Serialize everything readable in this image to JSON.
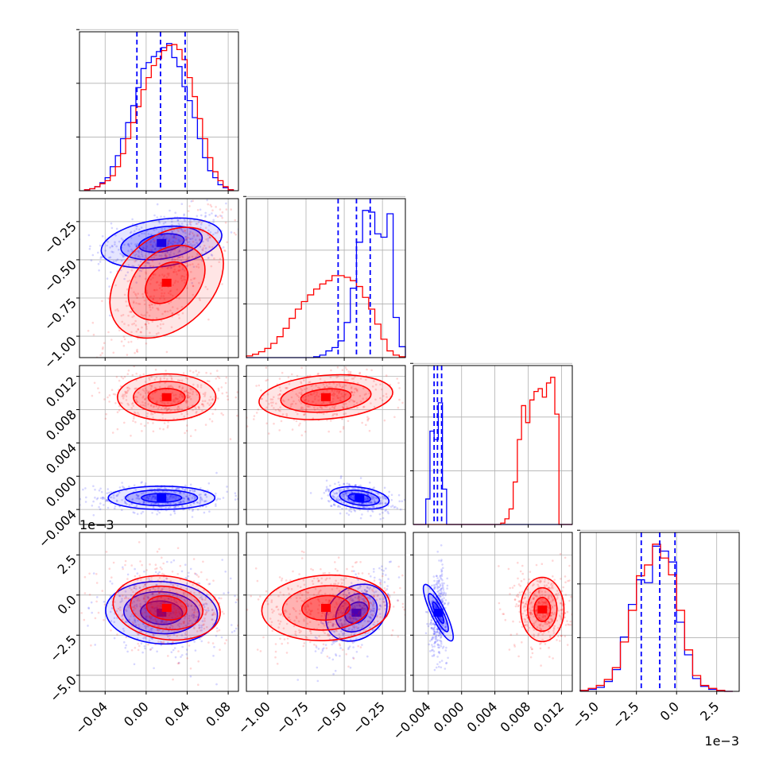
{
  "chart_data": {
    "type": "corner",
    "series": [
      {
        "color": "#0000ff"
      },
      {
        "color": "#ff0000"
      }
    ],
    "parameters": [
      {
        "range": [
          -0.065,
          0.09
        ],
        "ticks": [
          -0.04,
          0.0,
          0.04,
          0.08
        ],
        "tick_labels": [
          "−0.04",
          "0.00",
          "0.04",
          "0.08"
        ]
      },
      {
        "range": [
          -1.14,
          -0.1
        ],
        "ticks": [
          -1.0,
          -0.75,
          -0.5,
          -0.25
        ],
        "tick_labels": [
          "−1.00",
          "−0.75",
          "−0.50",
          "−0.25"
        ]
      },
      {
        "range": [
          -0.0058,
          0.0133
        ],
        "ticks": [
          -0.004,
          0.0,
          0.004,
          0.008,
          0.012
        ],
        "tick_labels": [
          "−0.004",
          "0.000",
          "0.004",
          "0.008",
          "0.012"
        ]
      },
      {
        "range": [
          -6.0,
          3.9
        ],
        "ticks": [
          -5.0,
          -2.5,
          0.0,
          2.5
        ],
        "tick_labels": [
          "−5.0",
          "−2.5",
          "0.0",
          "2.5"
        ]
      }
    ],
    "offset_labels": {
      "row4_y": "1e−3",
      "col4_x": "1e−3"
    },
    "grid": true,
    "histograms": [
      {
        "bins": [
          -0.06,
          -0.055,
          -0.05,
          -0.045,
          -0.04,
          -0.035,
          -0.03,
          -0.025,
          -0.02,
          -0.015,
          -0.01,
          -0.005,
          0,
          0.005,
          0.01,
          0.015,
          0.02,
          0.025,
          0.03,
          0.035,
          0.04,
          0.045,
          0.05,
          0.055,
          0.06,
          0.065,
          0.07,
          0.075,
          0.08,
          0.085
        ],
        "series": [
          {
            "counts": [
              1,
              2,
              4,
              8,
              13,
              24,
              35,
              52,
              68,
              85,
              103,
              122,
              128,
              134,
              139,
              143,
              147,
              133,
              124,
              104,
              90,
              73,
              52,
              33,
              20,
              13,
              6,
              3,
              1
            ]
          },
          {
            "counts": [
              1,
              2,
              4,
              7,
              10,
              15,
              24,
              37,
              52,
              68,
              84,
              101,
              113,
              125,
              132,
              140,
              145,
              146,
              141,
              131,
              113,
              94,
              72,
              52,
              33,
              19,
              10,
              4,
              1
            ]
          }
        ],
        "quantile_lines": [
          -0.009,
          0.014,
          0.038
        ]
      },
      {
        "bins": [
          -1.14,
          -1.1,
          -1.06,
          -1.02,
          -0.98,
          -0.94,
          -0.9,
          -0.86,
          -0.82,
          -0.78,
          -0.74,
          -0.7,
          -0.66,
          -0.62,
          -0.58,
          -0.54,
          -0.5,
          -0.46,
          -0.42,
          -0.38,
          -0.34,
          -0.3,
          -0.26,
          -0.22,
          -0.18,
          -0.14,
          -0.1
        ],
        "series": [
          {
            "counts": [
              0,
              0,
              0,
              0,
              0,
              0,
              0,
              0,
              0,
              0,
              0,
              1,
              3,
              8,
              12,
              20,
              42,
              83,
              138,
              176,
              174,
              148,
              144,
              172,
              48,
              13
            ]
          },
          {
            "counts": [
              2,
              4,
              7,
              11,
              17,
              25,
              35,
              47,
              58,
              67,
              75,
              82,
              88,
              92,
              98,
              98,
              96,
              92,
              85,
              72,
              58,
              40,
              22,
              8,
              3,
              1
            ]
          }
        ],
        "quantile_lines": [
          -0.54,
          -0.42,
          -0.33
        ]
      },
      {
        "bins": [
          -0.0058,
          -0.0053,
          -0.0048,
          -0.0043,
          -0.0038,
          -0.0033,
          -0.0028,
          -0.0023,
          -0.0018,
          -0.0013,
          -0.0008,
          -0.0003,
          0.0002,
          0.0007,
          0.0012,
          0.0017,
          0.0022,
          0.0027,
          0.0032,
          0.0037,
          0.0042,
          0.0047,
          0.0052,
          0.0057,
          0.0062,
          0.0067,
          0.0072,
          0.0077,
          0.0082,
          0.0087,
          0.0092,
          0.0097,
          0.0102,
          0.0107,
          0.0112,
          0.0117,
          0.0122,
          0.0127,
          0.0133
        ],
        "series": [
          {
            "counts": [
              0,
              0,
              0,
              18,
              66,
              60,
              86,
              25,
              0,
              0,
              0,
              0,
              0,
              0,
              0,
              0,
              0,
              0,
              0,
              0,
              0,
              0,
              0,
              0,
              0,
              0,
              0,
              0,
              0,
              0,
              0,
              0,
              0,
              0,
              0,
              0,
              0,
              0
            ]
          },
          {
            "counts": [
              0,
              0,
              0,
              0,
              0,
              0,
              0,
              0,
              0,
              0,
              0,
              0,
              0,
              0,
              0,
              0,
              0,
              0,
              0,
              0,
              0,
              1,
              4,
              11,
              30,
              60,
              84,
              72,
              88,
              94,
              96,
              90,
              100,
              104,
              78,
              0,
              0,
              0
            ]
          }
        ],
        "quantile_lines": [
          -0.0033,
          -0.0029,
          -0.0024
        ]
      },
      {
        "bins": [
          -6.0,
          -5.5,
          -5.0,
          -4.5,
          -4.0,
          -3.5,
          -3.0,
          -2.5,
          -2.0,
          -1.5,
          -1.0,
          -0.5,
          0.0,
          0.5,
          1.0,
          1.5,
          2.0,
          2.5,
          3.0,
          3.5
        ],
        "series": [
          {
            "counts": [
              1,
              2,
              4,
              10,
              22,
              55,
              88,
              113,
              110,
              147,
              142,
              131,
              70,
              37,
              13,
              5,
              2,
              1,
              0
            ]
          },
          {
            "counts": [
              1,
              3,
              6,
              12,
              24,
              50,
              82,
              117,
              128,
              149,
              135,
              118,
              82,
              42,
              16,
              6,
              3,
              1,
              0
            ]
          }
        ],
        "quantile_lines": [
          -2.2,
          -1.05,
          -0.1
        ]
      }
    ],
    "pair_clouds": [
      {
        "row": 1,
        "col": 0,
        "series": [
          {
            "center": [
              0.015,
              -0.39
            ],
            "sd": [
              0.026,
              0.085
            ],
            "rho": 0.3
          },
          {
            "center": [
              0.02,
              -0.65
            ],
            "sd": [
              0.024,
              0.2
            ],
            "rho": 0.75
          }
        ]
      },
      {
        "row": 2,
        "col": 0,
        "series": [
          {
            "center": [
              0.015,
              -0.0026
            ],
            "sd": [
              0.026,
              0.0007
            ],
            "rho": 0.0
          },
          {
            "center": [
              0.02,
              0.0095
            ],
            "sd": [
              0.024,
              0.0014
            ],
            "rho": 0.0
          }
        ]
      },
      {
        "row": 2,
        "col": 1,
        "series": [
          {
            "center": [
              -0.4,
              -0.0026
            ],
            "sd": [
              0.085,
              0.0007
            ],
            "rho": -0.3
          },
          {
            "center": [
              -0.62,
              0.0095
            ],
            "sd": [
              0.2,
              0.0014
            ],
            "rho": 0.2
          }
        ]
      },
      {
        "row": 3,
        "col": 0,
        "series": [
          {
            "center": [
              0.015,
              -1.1
            ],
            "sd": [
              0.026,
              1.0
            ],
            "rho": -0.1
          },
          {
            "center": [
              0.02,
              -0.8
            ],
            "sd": [
              0.024,
              1.05
            ],
            "rho": -0.2
          }
        ]
      },
      {
        "row": 3,
        "col": 1,
        "series": [
          {
            "center": [
              -0.42,
              -1.1
            ],
            "sd": [
              0.085,
              1.0
            ],
            "rho": 0.6
          },
          {
            "center": [
              -0.62,
              -0.8
            ],
            "sd": [
              0.2,
              1.05
            ],
            "rho": 0.1
          }
        ]
      },
      {
        "row": 3,
        "col": 2,
        "series": [
          {
            "center": [
              -0.0028,
              -1.1
            ],
            "sd": [
              0.0004,
              1.0
            ],
            "rho": 0.1
          },
          {
            "center": [
              0.0097,
              -0.9
            ],
            "sd": [
              0.0013,
              1.0
            ],
            "rho": 0.0
          }
        ]
      }
    ]
  }
}
